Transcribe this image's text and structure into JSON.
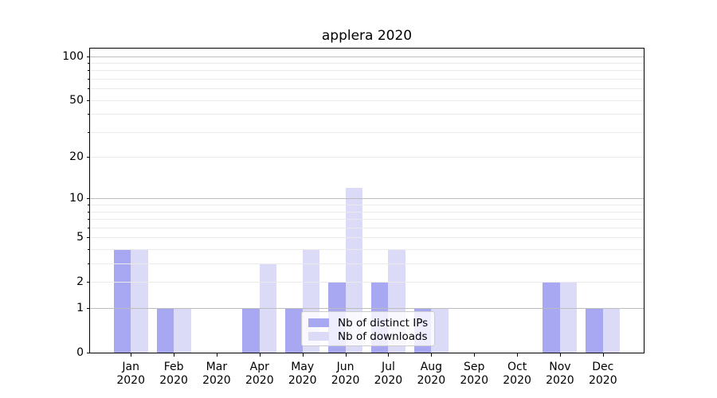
{
  "chart_data": {
    "type": "bar",
    "title": "applera 2020",
    "categories": [
      {
        "month": "Jan",
        "year": "2020"
      },
      {
        "month": "Feb",
        "year": "2020"
      },
      {
        "month": "Mar",
        "year": "2020"
      },
      {
        "month": "Apr",
        "year": "2020"
      },
      {
        "month": "May",
        "year": "2020"
      },
      {
        "month": "Jun",
        "year": "2020"
      },
      {
        "month": "Jul",
        "year": "2020"
      },
      {
        "month": "Aug",
        "year": "2020"
      },
      {
        "month": "Sep",
        "year": "2020"
      },
      {
        "month": "Oct",
        "year": "2020"
      },
      {
        "month": "Nov",
        "year": "2020"
      },
      {
        "month": "Dec",
        "year": "2020"
      }
    ],
    "series": [
      {
        "name": "Nb of distinct IPs",
        "color": "#a7a7f2",
        "values": [
          4,
          1,
          0,
          1,
          1,
          2,
          2,
          1,
          0,
          0,
          2,
          1
        ]
      },
      {
        "name": "Nb of downloads",
        "color": "#dbdbf8",
        "values": [
          4,
          1,
          0,
          3,
          4,
          12,
          4,
          1,
          0,
          0,
          2,
          1
        ]
      }
    ],
    "xlabel": "",
    "ylabel": "",
    "yscale": "log1p",
    "ylim": [
      0,
      113
    ],
    "yticks": [
      100,
      50,
      20,
      10,
      5,
      2,
      1,
      0
    ],
    "minor_gridlines": [
      2,
      3,
      4,
      5,
      6,
      7,
      8,
      9,
      20,
      30,
      40,
      50,
      60,
      70,
      80,
      90
    ],
    "major_gridlines": [
      1,
      10,
      100
    ],
    "grid": true,
    "legend_position": "lower center"
  },
  "colors": {
    "background": "#ffffff",
    "axis": "#000000",
    "text": "#000000",
    "major_grid": "#bcbcbc",
    "minor_grid": "#eaeaea",
    "legend_border": "#cccccc",
    "legend_bg": "rgba(255,255,255,0.8)"
  }
}
